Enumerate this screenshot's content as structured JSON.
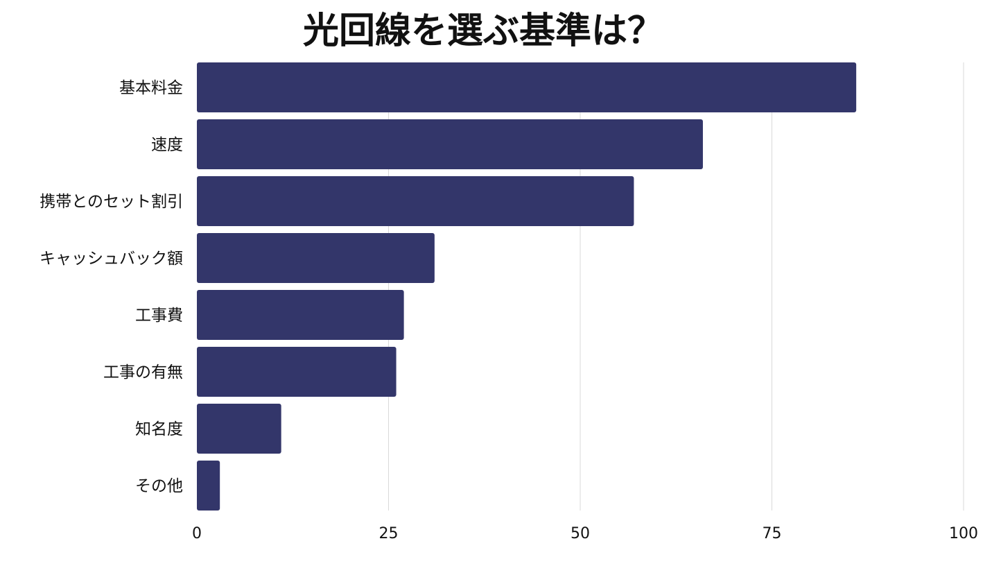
{
  "chart_data": {
    "type": "bar",
    "orientation": "horizontal",
    "title": "光回線を選ぶ基準は？",
    "xlabel": "",
    "ylabel": "",
    "categories": [
      "基本料金",
      "速度",
      "携帯とのセット割引",
      "キャッシュバック額",
      "工事費",
      "工事の有無",
      "知名度",
      "その他"
    ],
    "values": [
      86,
      66,
      57,
      31,
      27,
      26,
      11,
      3
    ],
    "xlim": [
      0,
      100
    ],
    "xticks": [
      "0",
      "25",
      "50",
      "75",
      "100"
    ],
    "grid": "vertical",
    "legend": "none",
    "bar_color": "#33366a",
    "grid_color": "#d9d9d9"
  }
}
